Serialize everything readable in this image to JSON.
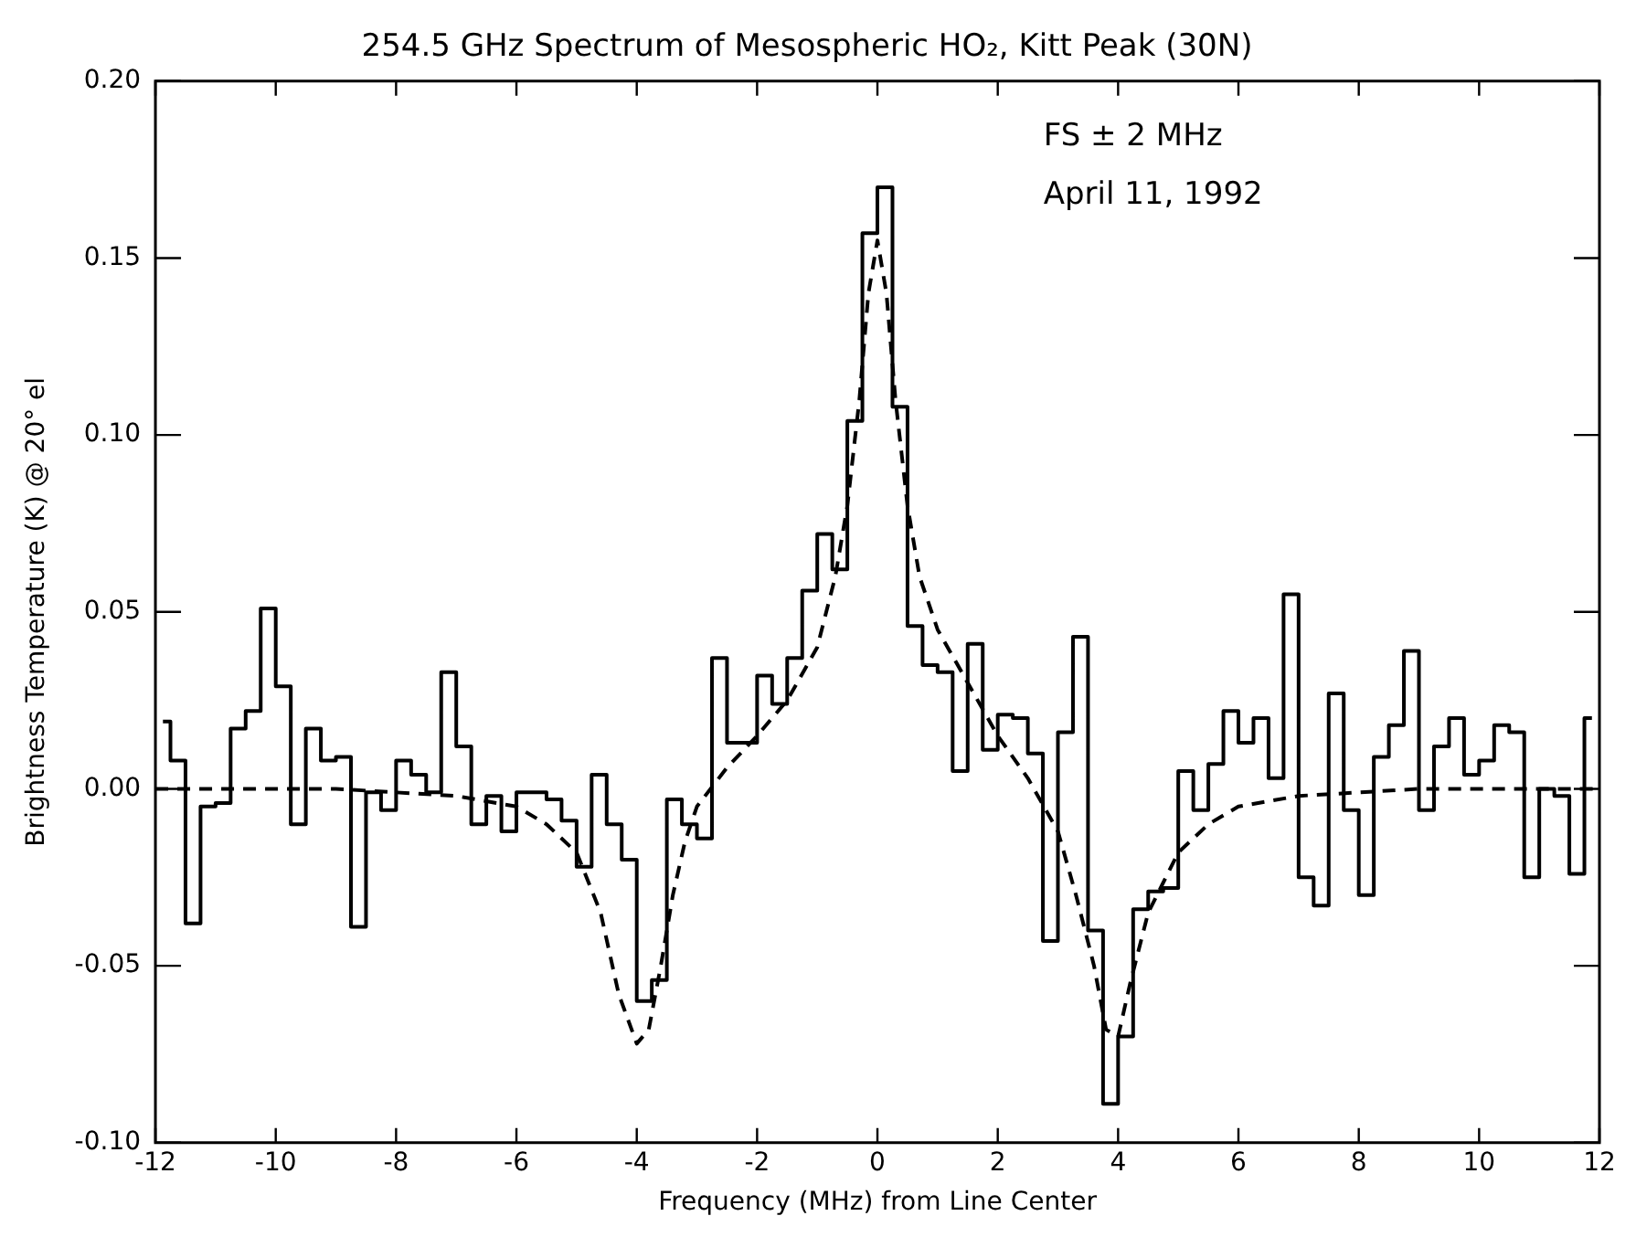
{
  "chart_data": {
    "type": "step",
    "title": "254.5 GHz Spectrum of Mesospheric HO₂, Kitt Peak (30N)",
    "xlabel": "Frequency (MHz) from Line Center",
    "ylabel": "Brightness Temperature (K) @ 20° el",
    "annotations": [
      "FS ± 2 MHz",
      "April 11, 1992"
    ],
    "xlim": [
      -12,
      12
    ],
    "xticks": [
      -12,
      -10,
      -8,
      -6,
      -4,
      -2,
      0,
      2,
      4,
      6,
      8,
      10,
      12
    ],
    "ylim": [
      -0.1,
      0.2
    ],
    "yticks": [
      {
        "value": -0.1,
        "label": "-0.10"
      },
      {
        "value": -0.05,
        "label": "-0.05"
      },
      {
        "value": 0,
        "label": "0.00"
      },
      {
        "value": 0.05,
        "label": "0.05"
      },
      {
        "value": 0.1,
        "label": "0.10"
      },
      {
        "value": 0.15,
        "label": "0.15"
      },
      {
        "value": 0.2,
        "label": "0.20"
      }
    ],
    "grid": false,
    "legend": false,
    "marker": "none",
    "series": [
      {
        "color": "#000000",
        "line_style": "solid",
        "x": [
          -11.875,
          -11.625,
          -11.375,
          -11.125,
          -10.875,
          -10.625,
          -10.375,
          -10.125,
          -9.875,
          -9.625,
          -9.375,
          -9.125,
          -8.875,
          -8.625,
          -8.375,
          -8.125,
          -7.875,
          -7.625,
          -7.375,
          -7.125,
          -6.875,
          -6.625,
          -6.375,
          -6.125,
          -5.875,
          -5.625,
          -5.375,
          -5.125,
          -4.875,
          -4.625,
          -4.375,
          -4.125,
          -3.875,
          -3.625,
          -3.375,
          -3.125,
          -2.875,
          -2.625,
          -2.375,
          -2.125,
          -1.875,
          -1.625,
          -1.375,
          -1.125,
          -0.875,
          -0.625,
          -0.375,
          -0.125,
          0.125,
          0.375,
          0.625,
          0.875,
          1.125,
          1.375,
          1.625,
          1.875,
          2.125,
          2.375,
          2.625,
          2.875,
          3.125,
          3.375,
          3.625,
          3.875,
          4.125,
          4.375,
          4.625,
          4.875,
          5.125,
          5.375,
          5.625,
          5.875,
          6.125,
          6.375,
          6.625,
          6.875,
          7.125,
          7.375,
          7.625,
          7.875,
          8.125,
          8.375,
          8.625,
          8.875,
          9.125,
          9.375,
          9.625,
          9.875,
          10.125,
          10.375,
          10.625,
          10.875,
          11.125,
          11.375,
          11.625,
          11.875
        ],
        "values": [
          0.019,
          0.008,
          -0.038,
          -0.005,
          -0.004,
          0.017,
          0.022,
          0.051,
          0.029,
          -0.01,
          0.017,
          0.008,
          0.009,
          -0.039,
          -0.001,
          -0.006,
          0.008,
          0.004,
          -0.001,
          0.033,
          0.012,
          -0.01,
          -0.002,
          -0.012,
          -0.001,
          -0.001,
          -0.003,
          -0.009,
          -0.022,
          0.004,
          -0.01,
          -0.02,
          -0.06,
          -0.054,
          -0.003,
          -0.01,
          -0.014,
          0.037,
          0.013,
          0.013,
          0.032,
          0.024,
          0.037,
          0.056,
          0.072,
          0.062,
          0.104,
          0.157,
          0.17,
          0.108,
          0.046,
          0.035,
          0.033,
          0.005,
          0.041,
          0.011,
          0.021,
          0.02,
          0.01,
          -0.043,
          0.016,
          0.043,
          -0.04,
          -0.089,
          -0.07,
          -0.034,
          -0.029,
          -0.028,
          0.005,
          -0.006,
          0.007,
          0.022,
          0.013,
          0.02,
          0.003,
          0.055,
          -0.025,
          -0.033,
          0.027,
          -0.006,
          -0.03,
          0.009,
          0.018,
          0.039,
          -0.006,
          0.012,
          0.02,
          0.004,
          0.008,
          0.018,
          0.016,
          -0.025,
          0,
          -0.002,
          -0.024,
          0.02
        ]
      },
      {
        "type": "line",
        "color": "#000000",
        "line_style": "dashed",
        "x": [
          -12,
          -9,
          -7,
          -6,
          -5.5,
          -5,
          -4.6,
          -4.3,
          -4,
          -3.8,
          -3.6,
          -3.4,
          -3.2,
          -3,
          -2.5,
          -2,
          -1.5,
          -1,
          -0.7,
          -0.5,
          -0.3,
          -0.15,
          0,
          0.15,
          0.3,
          0.5,
          0.7,
          1,
          1.5,
          2,
          2.5,
          3,
          3.3,
          3.6,
          3.8,
          4,
          4.2,
          4.5,
          5,
          5.5,
          6,
          7,
          9,
          12
        ],
        "values": [
          0,
          0,
          -0.002,
          -0.005,
          -0.01,
          -0.018,
          -0.035,
          -0.058,
          -0.072,
          -0.068,
          -0.05,
          -0.03,
          -0.015,
          -0.005,
          0.006,
          0.015,
          0.025,
          0.04,
          0.06,
          0.08,
          0.11,
          0.14,
          0.155,
          0.14,
          0.11,
          0.08,
          0.06,
          0.045,
          0.03,
          0.015,
          0.003,
          -0.012,
          -0.03,
          -0.05,
          -0.068,
          -0.07,
          -0.055,
          -0.035,
          -0.018,
          -0.01,
          -0.005,
          -0.002,
          0,
          0
        ]
      }
    ]
  }
}
